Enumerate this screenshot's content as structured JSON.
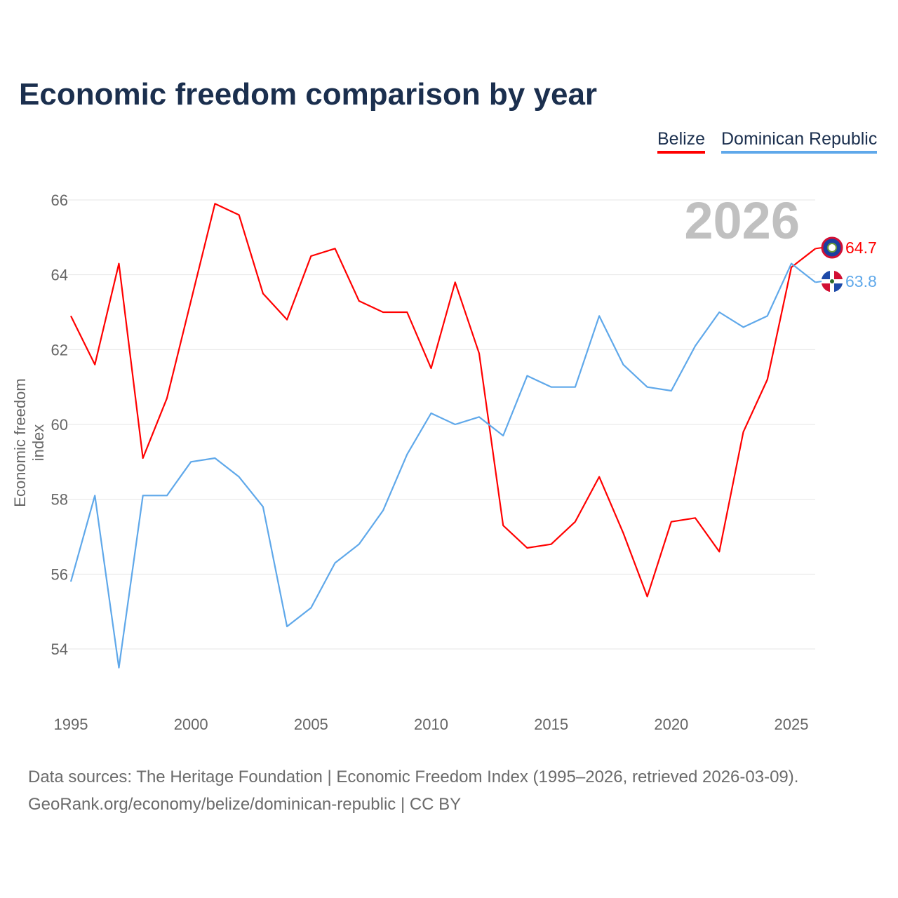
{
  "title": "Economic freedom comparison by year",
  "legend": [
    "Belize",
    "Dominican Republic"
  ],
  "colors": {
    "Belize": "#ff0000",
    "Dominican Republic": "#5fa8ea"
  },
  "year_watermark": "2026",
  "source_line1": "Data sources: The Heritage Foundation | Economic Freedom Index (1995–2026, retrieved 2026-03-09).",
  "source_line2": "GeoRank.org/economy/belize/dominican-republic | CC BY",
  "chart_data": {
    "type": "line",
    "title": "Economic freedom comparison by year",
    "xlabel": "",
    "ylabel": "Economic freedom index",
    "x": [
      1995,
      1996,
      1997,
      1998,
      1999,
      2000,
      2001,
      2002,
      2003,
      2004,
      2005,
      2006,
      2007,
      2008,
      2009,
      2010,
      2011,
      2012,
      2013,
      2014,
      2015,
      2016,
      2017,
      2018,
      2019,
      2020,
      2021,
      2022,
      2023,
      2024,
      2025,
      2026
    ],
    "xticks": [
      1995,
      2000,
      2005,
      2010,
      2015,
      2020,
      2025
    ],
    "yticks": [
      54,
      56,
      58,
      60,
      62,
      64,
      66
    ],
    "ylim": [
      52.6,
      66
    ],
    "xlim": [
      1995,
      2026
    ],
    "grid": true,
    "legend_position": "top-right",
    "series": [
      {
        "name": "Belize",
        "end_label": "64.7",
        "values": [
          62.9,
          61.6,
          64.3,
          59.1,
          60.7,
          63.3,
          65.9,
          65.6,
          63.5,
          62.8,
          64.5,
          64.7,
          63.3,
          63.0,
          63.0,
          61.5,
          63.8,
          61.9,
          57.3,
          56.7,
          56.8,
          57.4,
          58.6,
          57.1,
          55.4,
          57.4,
          57.5,
          56.6,
          59.8,
          61.2,
          64.2,
          64.7
        ]
      },
      {
        "name": "Dominican Republic",
        "end_label": "63.8",
        "values": [
          55.8,
          58.1,
          53.5,
          58.1,
          58.1,
          59.0,
          59.1,
          58.6,
          57.8,
          54.6,
          55.1,
          56.3,
          56.8,
          57.7,
          59.2,
          60.3,
          60.0,
          60.2,
          59.7,
          61.3,
          61.0,
          61.0,
          62.9,
          61.6,
          61.0,
          60.9,
          62.1,
          63.0,
          62.6,
          62.9,
          64.3,
          63.8
        ]
      }
    ]
  }
}
